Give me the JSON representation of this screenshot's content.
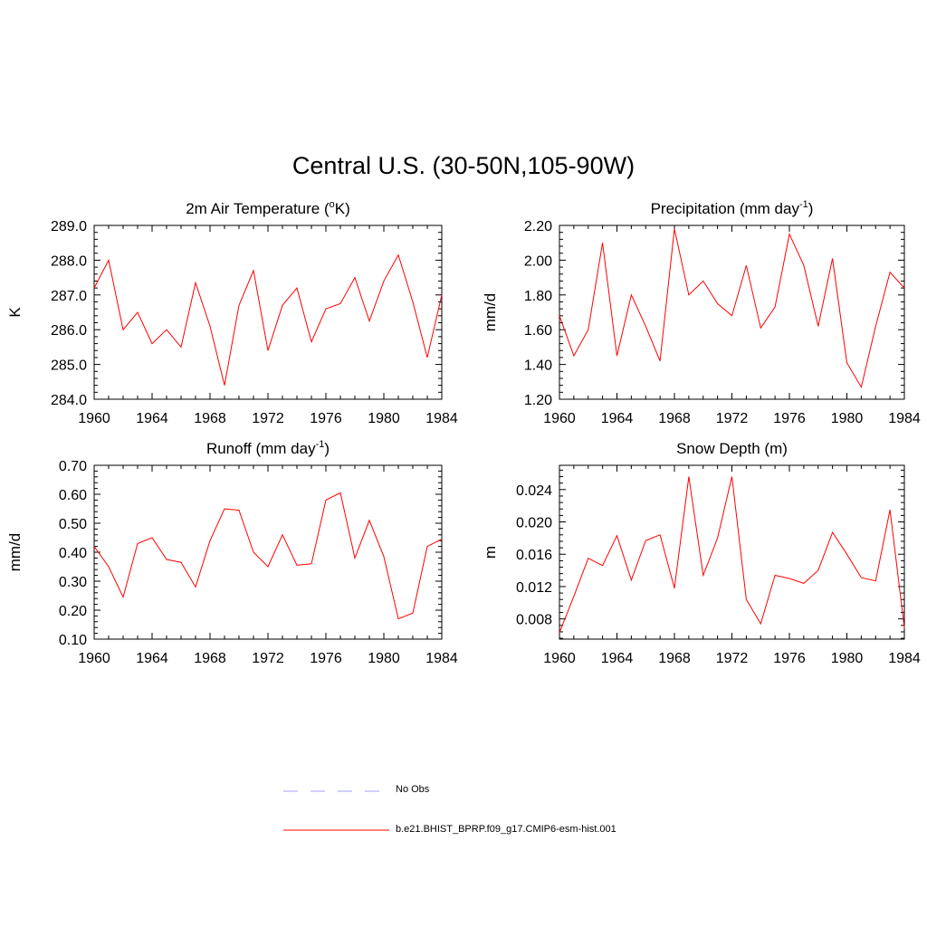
{
  "figure": {
    "title": "Central U.S. (30-50N,105-90W)"
  },
  "legend": {
    "entries": [
      {
        "label": "No Obs",
        "color": "#a0a0f0",
        "style": "dashed"
      },
      {
        "label": "b.e21.BHIST_BPRP.f09_g17.CMIP6-esm-hist.001",
        "color": "#ff0000",
        "style": "solid"
      }
    ]
  },
  "chart_data": [
    {
      "type": "line",
      "title": "2m Air Temperature (oK)",
      "title_parts": [
        "2m Air Temperature (",
        "o",
        "K)"
      ],
      "ylabel": "K",
      "xlim": [
        1960,
        1984
      ],
      "ylim": [
        284.0,
        289.0
      ],
      "x_ticks": [
        "1960",
        "1964",
        "1968",
        "1972",
        "1976",
        "1980",
        "1984"
      ],
      "y_ticks": [
        "284.0",
        "285.0",
        "286.0",
        "287.0",
        "288.0",
        "289.0"
      ],
      "x": [
        1960,
        1961,
        1962,
        1963,
        1964,
        1965,
        1966,
        1967,
        1968,
        1969,
        1970,
        1971,
        1972,
        1973,
        1974,
        1975,
        1976,
        1977,
        1978,
        1979,
        1980,
        1981,
        1982,
        1983,
        1984
      ],
      "series": [
        {
          "name": "b.e21.BHIST_BPRP.f09_g17.CMIP6-esm-hist.001",
          "color": "#ff0000",
          "values": [
            287.2,
            288.0,
            286.0,
            286.5,
            285.6,
            286.0,
            285.5,
            287.35,
            286.1,
            284.4,
            286.7,
            287.7,
            285.4,
            286.7,
            287.2,
            285.65,
            286.6,
            286.75,
            287.5,
            286.25,
            287.4,
            288.15,
            286.8,
            285.2,
            287.0
          ]
        }
      ]
    },
    {
      "type": "line",
      "title": "Precipitation (mm day-1)",
      "title_parts": [
        "Precipitation (mm day",
        "-1",
        ")"
      ],
      "ylabel": "mm/d",
      "xlim": [
        1960,
        1984
      ],
      "ylim": [
        1.2,
        2.2
      ],
      "x_ticks": [
        "1960",
        "1964",
        "1968",
        "1972",
        "1976",
        "1980",
        "1984"
      ],
      "y_ticks": [
        "1.20",
        "1.40",
        "1.60",
        "1.80",
        "2.00",
        "2.20"
      ],
      "x": [
        1960,
        1961,
        1962,
        1963,
        1964,
        1965,
        1966,
        1967,
        1968,
        1969,
        1970,
        1971,
        1972,
        1973,
        1974,
        1975,
        1976,
        1977,
        1978,
        1979,
        1980,
        1981,
        1982,
        1983,
        1984
      ],
      "series": [
        {
          "name": "b.e21.BHIST_BPRP.f09_g17.CMIP6-esm-hist.001",
          "color": "#ff0000",
          "values": [
            1.68,
            1.45,
            1.6,
            2.1,
            1.45,
            1.8,
            1.62,
            1.42,
            2.18,
            1.8,
            1.88,
            1.75,
            1.68,
            1.97,
            1.61,
            1.73,
            2.15,
            1.97,
            1.62,
            2.01,
            1.41,
            1.27,
            1.62,
            1.93,
            1.84
          ]
        }
      ]
    },
    {
      "type": "line",
      "title": "Runoff (mm day-1)",
      "title_parts": [
        "Runoff (mm day",
        "-1",
        ")"
      ],
      "ylabel": "mm/d",
      "xlim": [
        1960,
        1984
      ],
      "ylim": [
        0.1,
        0.7
      ],
      "x_ticks": [
        "1960",
        "1964",
        "1968",
        "1972",
        "1976",
        "1980",
        "1984"
      ],
      "y_ticks": [
        "0.10",
        "0.20",
        "0.30",
        "0.40",
        "0.50",
        "0.60",
        "0.70"
      ],
      "x": [
        1960,
        1961,
        1962,
        1963,
        1964,
        1965,
        1966,
        1967,
        1968,
        1969,
        1970,
        1971,
        1972,
        1973,
        1974,
        1975,
        1976,
        1977,
        1978,
        1979,
        1980,
        1981,
        1982,
        1983,
        1984
      ],
      "series": [
        {
          "name": "b.e21.BHIST_BPRP.f09_g17.CMIP6-esm-hist.001",
          "color": "#ff0000",
          "values": [
            0.42,
            0.35,
            0.245,
            0.43,
            0.45,
            0.375,
            0.365,
            0.28,
            0.44,
            0.55,
            0.545,
            0.4,
            0.35,
            0.46,
            0.355,
            0.36,
            0.58,
            0.605,
            0.38,
            0.51,
            0.385,
            0.17,
            0.19,
            0.42,
            0.445
          ]
        }
      ]
    },
    {
      "type": "line",
      "title": "Snow Depth (m)",
      "title_parts": [
        "Snow Depth (m)"
      ],
      "ylabel": "m",
      "xlim": [
        1960,
        1984
      ],
      "ylim": [
        0.0055,
        0.027
      ],
      "x_ticks": [
        "1960",
        "1964",
        "1968",
        "1972",
        "1976",
        "1980",
        "1984"
      ],
      "y_ticks": [
        "0.008",
        "0.012",
        "0.016",
        "0.020",
        "0.024"
      ],
      "y_tick_values": [
        0.008,
        0.012,
        0.016,
        0.02,
        0.024
      ],
      "x": [
        1960,
        1961,
        1962,
        1963,
        1964,
        1965,
        1966,
        1967,
        1968,
        1969,
        1970,
        1971,
        1972,
        1973,
        1974,
        1975,
        1976,
        1977,
        1978,
        1979,
        1980,
        1981,
        1982,
        1983,
        1984
      ],
      "series": [
        {
          "name": "b.e21.BHIST_BPRP.f09_g17.CMIP6-esm-hist.001",
          "color": "#ff0000",
          "values": [
            0.0063,
            0.0108,
            0.0155,
            0.0146,
            0.0183,
            0.0128,
            0.0177,
            0.0184,
            0.0118,
            0.0256,
            0.0134,
            0.018,
            0.0256,
            0.0104,
            0.0074,
            0.0134,
            0.013,
            0.0124,
            0.014,
            0.0187,
            0.016,
            0.0131,
            0.0127,
            0.0215,
            0.0069
          ]
        }
      ]
    }
  ]
}
